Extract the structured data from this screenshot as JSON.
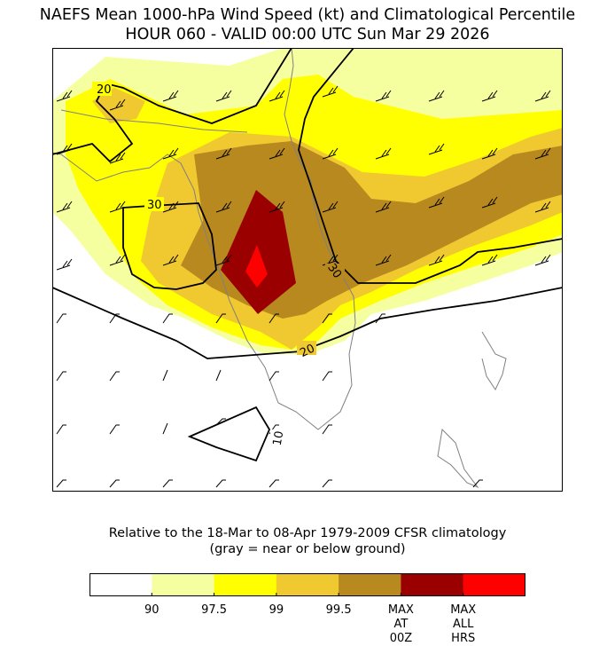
{
  "title": {
    "line1": "NAEFS Mean 1000-hPa Wind Speed (kt) and Climatological Percentile",
    "line2": "HOUR 060 - VALID 00:00 UTC Sun Mar 29 2026"
  },
  "map": {
    "contour_labels": [
      "20",
      "30",
      "30",
      "20",
      "10"
    ],
    "colors": {
      "p90": "#f5ff9f",
      "p97_5": "#ffff00",
      "p99": "#f0c830",
      "p99_5": "#b8891e",
      "max_00z": "#9b0000",
      "max_all": "#ff0000",
      "coast": "#808080",
      "contour": "#000000"
    }
  },
  "subtitle": {
    "line1": "Relative to the 18-Mar to 08-Apr 1979-2009 CFSR climatology",
    "line2": "(gray = near or below ground)"
  },
  "colorbar": {
    "colors": [
      "#ffffff",
      "#f5ff9f",
      "#ffff00",
      "#f0c830",
      "#b8891e",
      "#9b0000",
      "#ff0000"
    ],
    "tick_labels": [
      "90",
      "97.5",
      "99",
      "99.5",
      "MAX\nAT\n00Z",
      "MAX\nALL\nHRS"
    ]
  }
}
